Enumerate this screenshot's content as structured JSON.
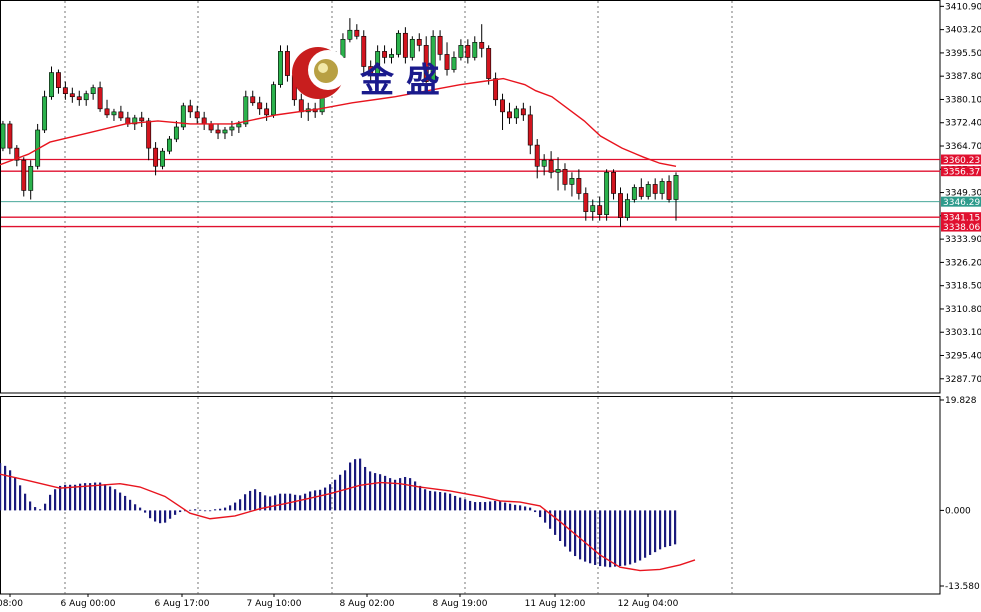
{
  "chart_data": [
    {
      "type": "candlestick",
      "panel": "price",
      "y_ticks": [
        "3410.90",
        "3403.20",
        "3395.50",
        "3387.80",
        "3380.10",
        "3372.40",
        "3364.70",
        "3357.00",
        "3349.30",
        "3341.60",
        "3333.90",
        "3326.20",
        "3318.50",
        "3310.80",
        "3303.10",
        "3295.40",
        "3287.70"
      ],
      "price_tags": [
        {
          "label": "3360.23",
          "value": 3360.23,
          "color": "#e0102f"
        },
        {
          "label": "3356.37",
          "value": 3356.37,
          "color": "#e0102f"
        },
        {
          "label": "3346.29",
          "value": 3346.29,
          "color": "#2e9b8c"
        },
        {
          "label": "3341.15",
          "value": 3341.15,
          "color": "#e0102f"
        },
        {
          "label": "3338.06",
          "value": 3338.06,
          "color": "#e0102f"
        }
      ],
      "x_labels": [
        "08:00",
        "6 Aug 00:00",
        "6 Aug 17:00",
        "7 Aug 10:00",
        "8 Aug 02:00",
        "8 Aug 19:00",
        "11 Aug 12:00",
        "12 Aug 04:00"
      ],
      "ylim": [
        3283,
        3413
      ],
      "candles": [
        [
          3371,
          3373,
          3363,
          3364
        ],
        [
          3364,
          3373,
          3363,
          3372
        ],
        [
          3372,
          3373,
          3362,
          3364
        ],
        [
          3364,
          3365,
          3358,
          3360
        ],
        [
          3360,
          3361,
          3348,
          3350
        ],
        [
          3350,
          3360,
          3347,
          3358
        ],
        [
          3358,
          3372,
          3357,
          3370
        ],
        [
          3370,
          3383,
          3369,
          3381
        ],
        [
          3381,
          3391,
          3380,
          3389
        ],
        [
          3389,
          3390,
          3382,
          3384
        ],
        [
          3384,
          3386,
          3380,
          3382
        ],
        [
          3382,
          3384,
          3379,
          3381
        ],
        [
          3381,
          3383,
          3378,
          3380
        ],
        [
          3380,
          3383,
          3378,
          3382
        ],
        [
          3382,
          3385,
          3380,
          3384
        ],
        [
          3384,
          3386,
          3376,
          3377
        ],
        [
          3377,
          3380,
          3374,
          3375
        ],
        [
          3375,
          3377,
          3373,
          3376
        ],
        [
          3376,
          3378,
          3373,
          3374
        ],
        [
          3374,
          3376,
          3371,
          3372
        ],
        [
          3372,
          3375,
          3370,
          3374
        ],
        [
          3374,
          3376,
          3371,
          3373
        ],
        [
          3373,
          3374,
          3360,
          3364
        ],
        [
          3364,
          3366,
          3355,
          3358
        ],
        [
          3358,
          3364,
          3357,
          3363
        ],
        [
          3363,
          3368,
          3362,
          3367
        ],
        [
          3367,
          3373,
          3366,
          3371
        ],
        [
          3371,
          3379,
          3370,
          3378
        ],
        [
          3378,
          3380,
          3374,
          3376
        ],
        [
          3376,
          3378,
          3372,
          3374
        ],
        [
          3374,
          3376,
          3370,
          3372
        ],
        [
          3372,
          3373,
          3369,
          3370
        ],
        [
          3370,
          3372,
          3367,
          3369
        ],
        [
          3369,
          3371,
          3367,
          3370
        ],
        [
          3370,
          3373,
          3368,
          3371
        ],
        [
          3371,
          3373,
          3369,
          3372
        ],
        [
          3372,
          3383,
          3371,
          3381
        ],
        [
          3381,
          3383,
          3378,
          3379
        ],
        [
          3379,
          3381,
          3375,
          3377
        ],
        [
          3377,
          3379,
          3373,
          3375
        ],
        [
          3375,
          3386,
          3374,
          3385
        ],
        [
          3385,
          3398,
          3384,
          3396
        ],
        [
          3396,
          3398,
          3386,
          3388
        ],
        [
          3388,
          3390,
          3378,
          3380
        ],
        [
          3380,
          3382,
          3374,
          3376
        ],
        [
          3376,
          3379,
          3373,
          3377
        ],
        [
          3377,
          3379,
          3374,
          3376
        ],
        [
          3376,
          3386,
          3375,
          3384
        ],
        [
          3384,
          3392,
          3383,
          3390
        ],
        [
          3390,
          3396,
          3388,
          3394
        ],
        [
          3394,
          3402,
          3393,
          3400
        ],
        [
          3400,
          3407,
          3399,
          3403
        ],
        [
          3403,
          3405,
          3400,
          3401
        ],
        [
          3401,
          3403,
          3389,
          3391
        ],
        [
          3391,
          3393,
          3386,
          3388
        ],
        [
          3388,
          3398,
          3387,
          3396
        ],
        [
          3396,
          3398,
          3392,
          3394
        ],
        [
          3394,
          3397,
          3392,
          3395
        ],
        [
          3395,
          3403,
          3394,
          3402
        ],
        [
          3402,
          3404,
          3392,
          3394
        ],
        [
          3394,
          3401,
          3393,
          3400
        ],
        [
          3400,
          3402,
          3396,
          3398
        ],
        [
          3398,
          3401,
          3383,
          3386
        ],
        [
          3386,
          3403,
          3385,
          3401
        ],
        [
          3401,
          3403,
          3393,
          3395
        ],
        [
          3395,
          3399,
          3388,
          3390
        ],
        [
          3390,
          3396,
          3389,
          3394
        ],
        [
          3394,
          3400,
          3393,
          3398
        ],
        [
          3398,
          3400,
          3392,
          3394
        ],
        [
          3394,
          3401,
          3393,
          3399
        ],
        [
          3399,
          3405,
          3394,
          3397
        ],
        [
          3397,
          3398,
          3385,
          3387
        ],
        [
          3387,
          3389,
          3378,
          3380
        ],
        [
          3380,
          3382,
          3370,
          3376
        ],
        [
          3376,
          3379,
          3372,
          3374
        ],
        [
          3374,
          3378,
          3372,
          3377
        ],
        [
          3377,
          3379,
          3373,
          3375
        ],
        [
          3375,
          3378,
          3362,
          3365
        ],
        [
          3365,
          3367,
          3354,
          3358
        ],
        [
          3358,
          3362,
          3355,
          3360
        ],
        [
          3360,
          3363,
          3354,
          3356
        ],
        [
          3356,
          3361,
          3350,
          3357
        ],
        [
          3357,
          3359,
          3350,
          3352
        ],
        [
          3352,
          3356,
          3348,
          3354
        ],
        [
          3354,
          3357,
          3347,
          3349
        ],
        [
          3349,
          3351,
          3340,
          3343
        ],
        [
          3343,
          3347,
          3340,
          3345
        ],
        [
          3345,
          3348,
          3340,
          3342
        ],
        [
          3342,
          3357,
          3340,
          3356
        ],
        [
          3356,
          3357,
          3347,
          3349
        ],
        [
          3349,
          3351,
          3338,
          3341
        ],
        [
          3341,
          3349,
          3340,
          3347
        ],
        [
          3347,
          3352,
          3346,
          3351
        ],
        [
          3351,
          3354,
          3347,
          3348
        ],
        [
          3348,
          3353,
          3347,
          3352
        ],
        [
          3352,
          3354,
          3347,
          3349
        ],
        [
          3349,
          3354,
          3347,
          3353
        ],
        [
          3353,
          3355,
          3346,
          3347
        ],
        [
          3347,
          3356,
          3340,
          3355
        ]
      ],
      "ma_color": "#e8141e",
      "ma": [
        [
          0,
          3358
        ],
        [
          6,
          3362
        ],
        [
          10,
          3366
        ],
        [
          17,
          3369
        ],
        [
          24,
          3372
        ],
        [
          30,
          3373
        ],
        [
          36,
          3372
        ],
        [
          44,
          3372
        ],
        [
          52,
          3375
        ],
        [
          60,
          3377
        ],
        [
          66,
          3379
        ],
        [
          74,
          3381
        ],
        [
          80,
          3383
        ],
        [
          86,
          3385
        ],
        [
          90,
          3386
        ],
        [
          94,
          3387
        ],
        [
          98,
          3385
        ],
        [
          100,
          3383
        ],
        [
          103,
          3381
        ],
        [
          106,
          3377
        ],
        [
          109,
          3373
        ],
        [
          112,
          3368
        ],
        [
          116,
          3364
        ],
        [
          120,
          3361
        ],
        [
          123,
          3359
        ],
        [
          126,
          3358
        ]
      ],
      "bull_color": "#2bb24c",
      "bear_color": "#d2141e"
    },
    {
      "type": "macd",
      "panel": "indicator",
      "y_ticks": [
        "19.828",
        "0.000",
        "-13.580"
      ],
      "ylim": [
        -13.58,
        19.828
      ],
      "hist_color": "#1a1a7c",
      "signal_color": "#e8141e",
      "hist": [
        8.5,
        8,
        7.2,
        6,
        4.5,
        3,
        1.6,
        0.6,
        0.2,
        1.2,
        2.8,
        3.8,
        4.4,
        4.6,
        4.6,
        4.6,
        4.8,
        4.9,
        4.9,
        5,
        5,
        4.7,
        4.3,
        3.8,
        3.2,
        2.6,
        1.9,
        1.1,
        0.5,
        -0.4,
        -1.4,
        -2,
        -2.3,
        -2.2,
        -1.5,
        -0.8,
        -0.3,
        0,
        0.1,
        0.2,
        0.1,
        -0.1,
        0,
        0.2,
        0.3,
        0.5,
        0.9,
        1.4,
        2,
        2.9,
        3.5,
        3.8,
        3.3,
        2.7,
        2.5,
        2.7,
        3,
        3,
        3,
        2.8,
        2.7,
        3,
        3.4,
        3.6,
        3.7,
        4.1,
        4.7,
        5.5,
        6.4,
        7.2,
        8.6,
        9.2,
        9.3,
        7.8,
        7,
        6.7,
        6.5,
        6.2,
        5.8,
        5.5,
        5.8,
        6,
        5.8,
        5.2,
        4.4,
        3.8,
        3.5,
        3.4,
        3.3,
        3.2,
        3,
        2.6,
        2.3,
        2,
        1.7,
        1.5,
        1.5,
        1.5,
        1.6,
        1.7,
        1.6,
        1.4,
        1.2,
        1,
        0.9,
        0.7,
        0.5,
        -0.3,
        -1.2,
        -2.2,
        -3.3,
        -4.4,
        -5.5,
        -6.5,
        -7.4,
        -8.2,
        -8.8,
        -9.2,
        -9.5,
        -9.8,
        -10,
        -10.1,
        -10.2,
        -10.1,
        -10,
        -9.9,
        -9.7,
        -9.4,
        -9,
        -8.5,
        -8,
        -7.5,
        -7,
        -6.6,
        -6.4,
        -6.1
      ],
      "signal": [
        [
          0,
          6.5
        ],
        [
          5,
          5.5
        ],
        [
          12,
          4
        ],
        [
          18,
          4.4
        ],
        [
          24,
          4.8
        ],
        [
          28,
          4.2
        ],
        [
          33,
          2.5
        ],
        [
          38,
          -0.5
        ],
        [
          42,
          -1.5
        ],
        [
          47,
          -1
        ],
        [
          52,
          0.3
        ],
        [
          57,
          1.2
        ],
        [
          62,
          2.2
        ],
        [
          66,
          3
        ],
        [
          72,
          4.5
        ],
        [
          76,
          5
        ],
        [
          80,
          4.8
        ],
        [
          84,
          4.2
        ],
        [
          90,
          3.5
        ],
        [
          96,
          2.5
        ],
        [
          100,
          1.7
        ],
        [
          104,
          1.5
        ],
        [
          108,
          0.8
        ],
        [
          112,
          -2
        ],
        [
          116,
          -5
        ],
        [
          120,
          -8
        ],
        [
          124,
          -10.2
        ],
        [
          128,
          -10.8
        ],
        [
          132,
          -10.6
        ],
        [
          136,
          -9.8
        ],
        [
          139,
          -8.9
        ]
      ]
    }
  ],
  "logo": {
    "text": "金 盛",
    "ring_color": "#c81e1e",
    "core_color": "#b8a043"
  }
}
